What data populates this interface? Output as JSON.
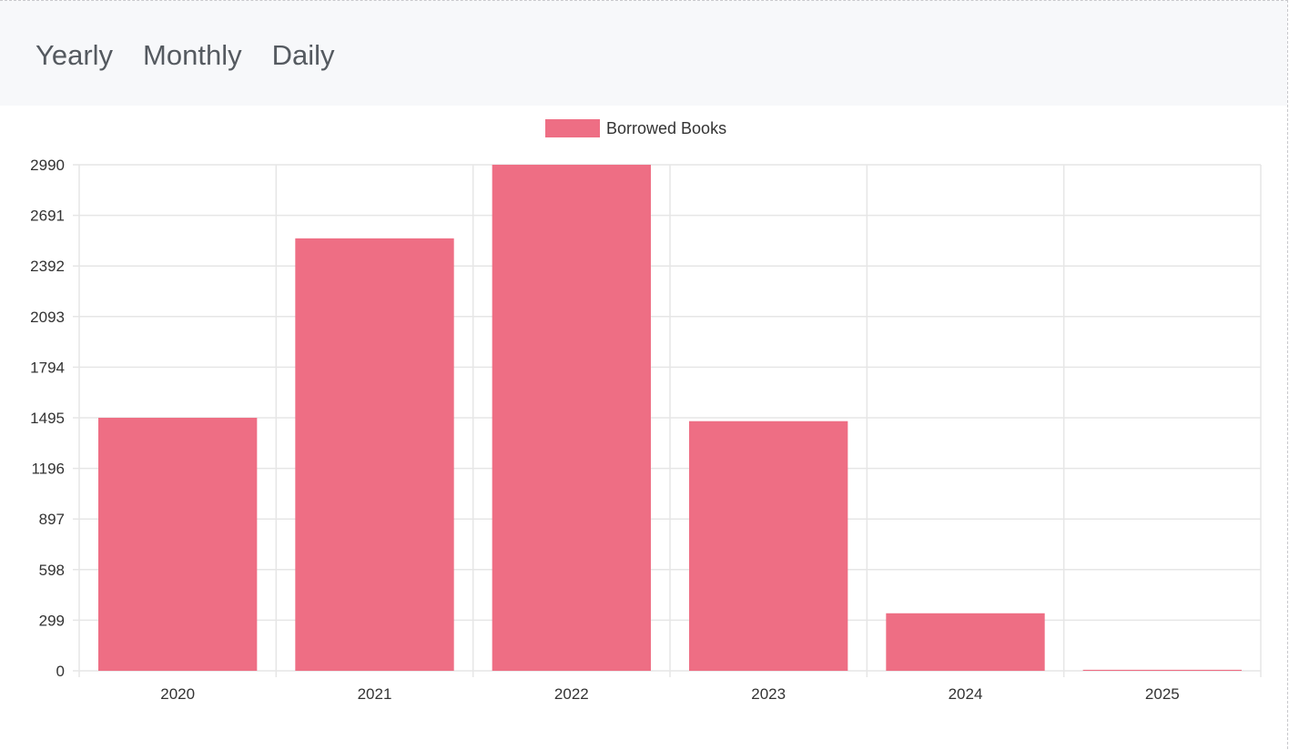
{
  "tabs": [
    {
      "label": "Yearly"
    },
    {
      "label": "Monthly"
    },
    {
      "label": "Daily"
    }
  ],
  "chart_data": {
    "type": "bar",
    "categories": [
      "2020",
      "2021",
      "2022",
      "2023",
      "2024",
      "2025"
    ],
    "series": [
      {
        "name": "Borrowed Books",
        "color": "#ee6e84",
        "values": [
          1495,
          2555,
          2990,
          1475,
          340,
          6
        ]
      }
    ],
    "yticks": [
      0,
      299,
      598,
      897,
      1196,
      1495,
      1794,
      2093,
      2392,
      2691,
      2990
    ],
    "ylim": [
      0,
      2990
    ],
    "grid": true,
    "legend_position": "top-center",
    "title": "",
    "xlabel": "",
    "ylabel": ""
  }
}
